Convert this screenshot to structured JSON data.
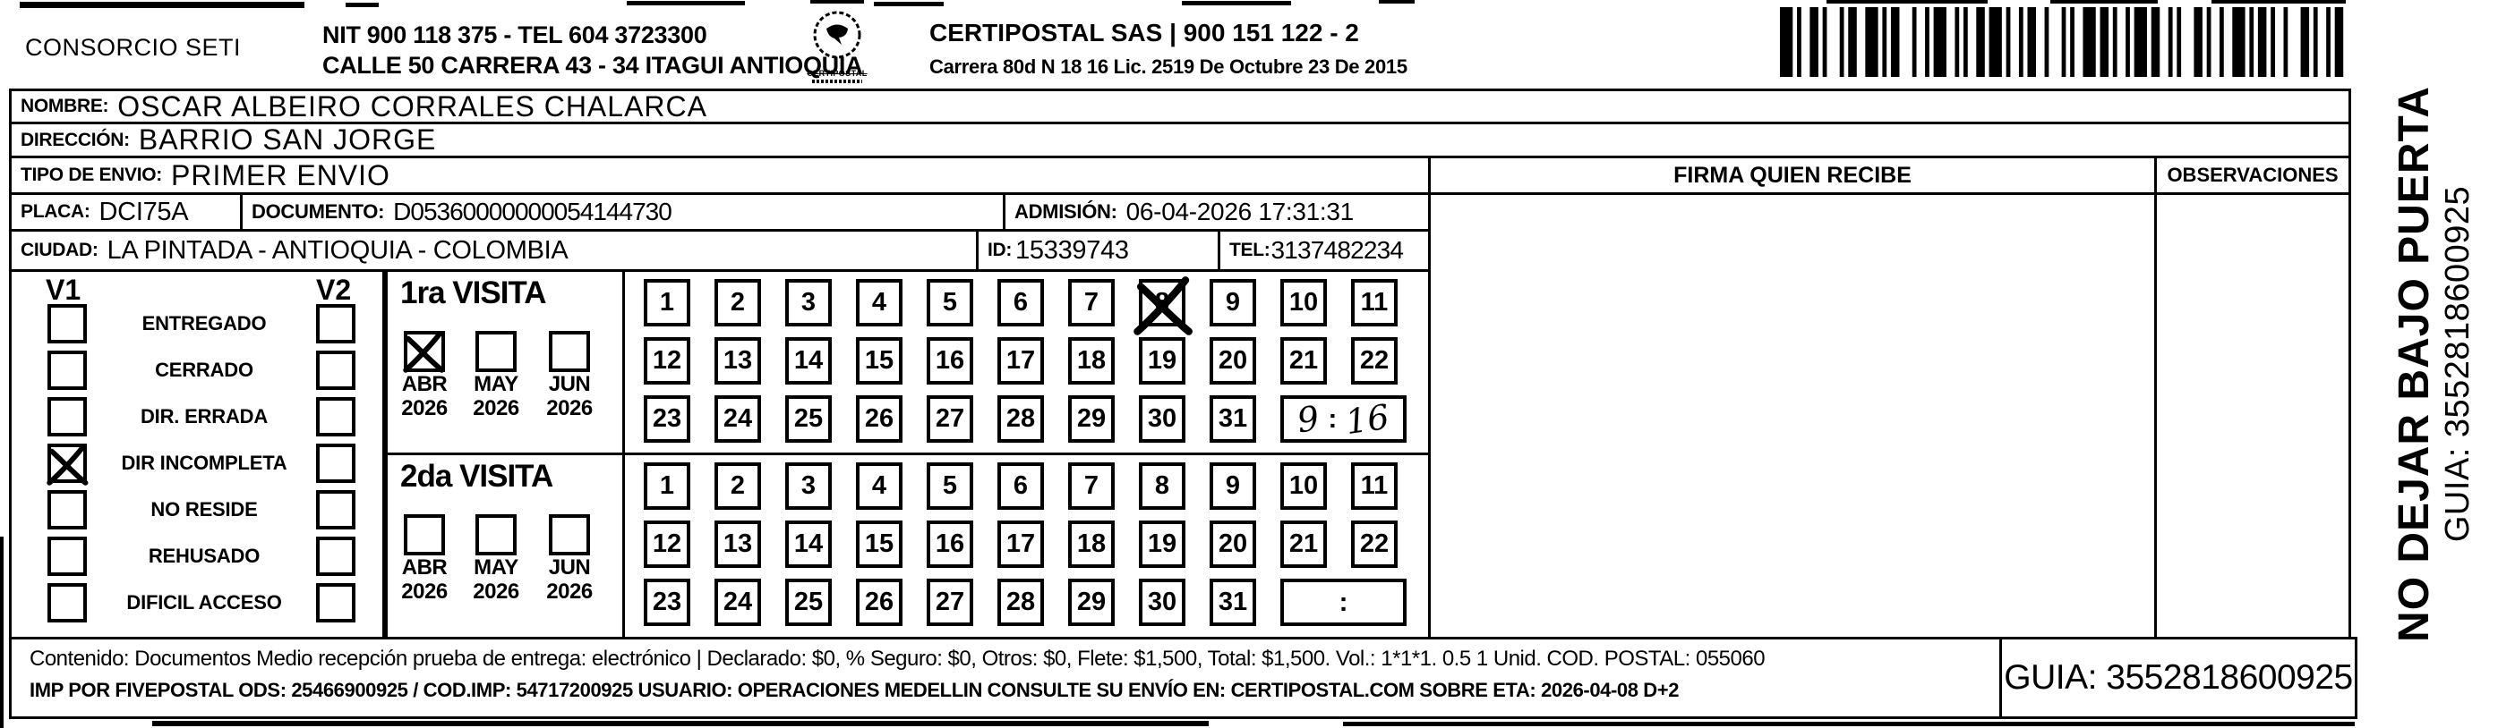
{
  "colors": {
    "ink": "#000000",
    "paper": "#ffffff"
  },
  "header": {
    "consorcio": "CONSORCIO SETI",
    "nit_line": "NIT 900 118 375 - TEL 604 3723300",
    "address_line": "CALLE 50 CARRERA 43 - 34 ITAGUI ANTIOQUIA",
    "logo_text": "CERTIPOSTAL",
    "company_line": "CERTIPOSTAL SAS | 900 151 122 - 2",
    "company_address": "Carrera 80d N 18 16  Lic. 2519 De Octubre 23 De 2015"
  },
  "recipient": {
    "nombre_label": "NOMBRE:",
    "nombre": "OSCAR ALBEIRO CORRALES CHALARCA",
    "direccion_label": "DIRECCIÓN:",
    "direccion": "BARRIO SAN JORGE",
    "tipo_label": "TIPO DE ENVIO:",
    "tipo": "PRIMER ENVIO",
    "placa_label": "PLACA:",
    "placa": "DCI75A",
    "documento_label": "DOCUMENTO:",
    "documento": "D05360000000054144730",
    "admision_label": "ADMISIÓN:",
    "admision": "06-04-2026 17:31:31",
    "ciudad_label": "CIUDAD:",
    "ciudad": "LA PINTADA - ANTIOQUIA - COLOMBIA",
    "id_label": "ID:",
    "id_value": "15339743",
    "tel_label": "TEL:",
    "tel": "3137482234"
  },
  "panels": {
    "firma_header": "FIRMA QUIEN RECIBE",
    "observaciones_header": "OBSERVACIONES"
  },
  "status": {
    "v1_header": "V1",
    "v2_header": "V2",
    "rows": [
      {
        "label": "ENTREGADO",
        "v1": false,
        "v2": false
      },
      {
        "label": "CERRADO",
        "v1": false,
        "v2": false
      },
      {
        "label": "DIR. ERRADA",
        "v1": false,
        "v2": false
      },
      {
        "label": "DIR INCOMPLETA",
        "v1": true,
        "v2": false
      },
      {
        "label": "NO RESIDE",
        "v1": false,
        "v2": false
      },
      {
        "label": "REHUSADO",
        "v1": false,
        "v2": false
      },
      {
        "label": "DIFICIL ACCESO",
        "v1": false,
        "v2": false
      }
    ]
  },
  "visits": [
    {
      "title": "1ra VISITA",
      "months": [
        {
          "month": "ABR",
          "year": "2026",
          "checked": true
        },
        {
          "month": "MAY",
          "year": "2026",
          "checked": false
        },
        {
          "month": "JUN",
          "year": "2026",
          "checked": false
        }
      ],
      "day_rows": [
        [
          1,
          2,
          3,
          4,
          5,
          6,
          7,
          8,
          9,
          10,
          11
        ],
        [
          12,
          13,
          14,
          15,
          16,
          17,
          18,
          19,
          20,
          21,
          22
        ],
        [
          23,
          24,
          25,
          26,
          27,
          28,
          29,
          30,
          31
        ]
      ],
      "crossed_day": 8,
      "time_hour": "9",
      "time_separator": ":",
      "time_minute": "16"
    },
    {
      "title": "2da VISITA",
      "months": [
        {
          "month": "ABR",
          "year": "2026",
          "checked": false
        },
        {
          "month": "MAY",
          "year": "2026",
          "checked": false
        },
        {
          "month": "JUN",
          "year": "2026",
          "checked": false
        }
      ],
      "day_rows": [
        [
          1,
          2,
          3,
          4,
          5,
          6,
          7,
          8,
          9,
          10,
          11
        ],
        [
          12,
          13,
          14,
          15,
          16,
          17,
          18,
          19,
          20,
          21,
          22
        ],
        [
          23,
          24,
          25,
          26,
          27,
          28,
          29,
          30,
          31
        ]
      ],
      "crossed_day": null,
      "time_hour": "",
      "time_separator": ":",
      "time_minute": ""
    }
  ],
  "side_note": {
    "line1": "NO DEJAR BAJO PUERTA",
    "line2": "GUIA: 3552818600925"
  },
  "footer": {
    "contenido_line": "Contenido: Documentos Medio recepción prueba de entrega: electrónico | Declarado: $0, % Seguro: $0, Otros: $0, Flete: $1,500, Total: $1,500. Vol.: 1*1*1. 0.5  1 Unid. COD. POSTAL: 055060",
    "imp_line": "IMP POR FIVEPOSTAL ODS: 25466900925 / COD.IMP: 54717200925 USUARIO: OPERACIONES MEDELLIN CONSULTE SU ENVÍO EN: CERTIPOSTAL.COM SOBRE ETA: 2026-04-08 D+2",
    "guia": "GUIA: 3552818600925"
  }
}
